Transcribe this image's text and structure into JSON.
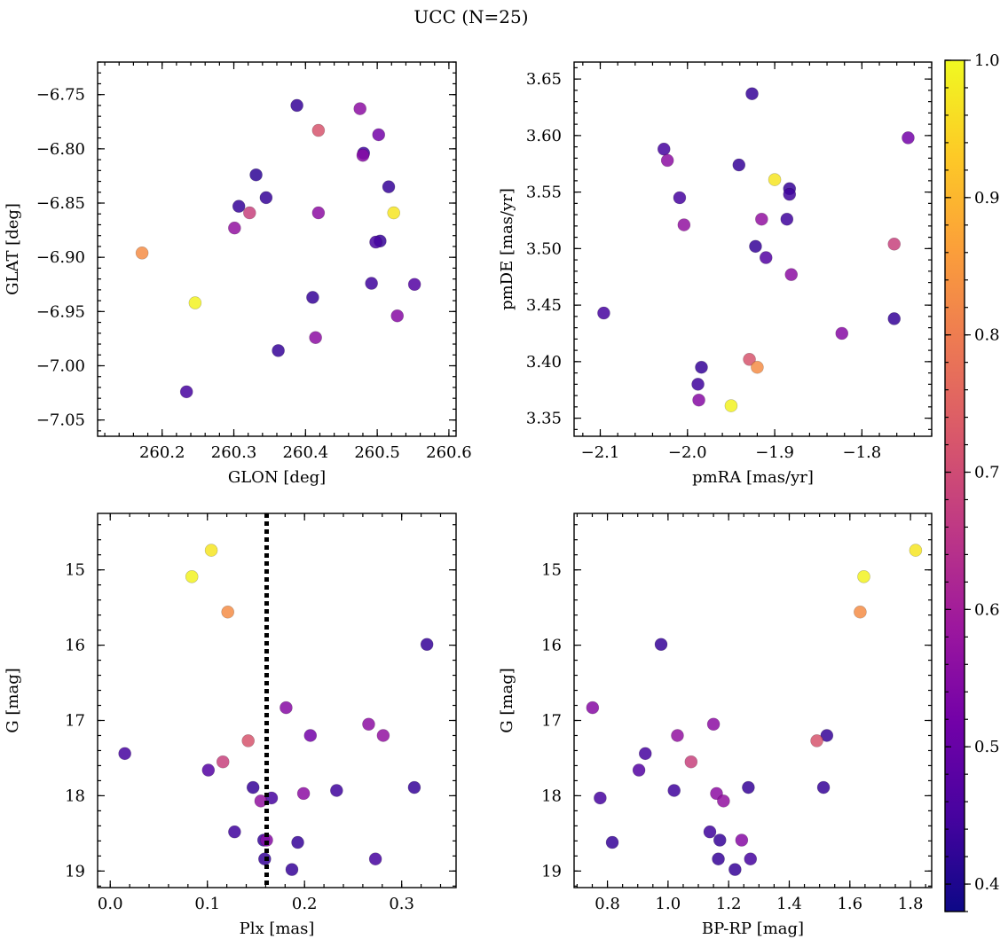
{
  "figure": {
    "suptitle": "UCC (N=25)"
  },
  "colorbar": {
    "range": [
      0.38,
      1.0
    ],
    "ticks": [
      0.4,
      0.5,
      0.6,
      0.7,
      0.8,
      0.9,
      1.0
    ],
    "tick_labels": [
      "0.4",
      "0.5",
      "0.6",
      "0.7",
      "0.8",
      "0.9",
      "1.0"
    ],
    "colormap": "plasma",
    "colormap_stops": [
      "#0d0887",
      "#46039f",
      "#7201a8",
      "#9c179e",
      "#bd3786",
      "#d8576b",
      "#ed7953",
      "#fb9f3a",
      "#fdca26",
      "#f0f921"
    ]
  },
  "chart_data": [
    {
      "type": "scatter",
      "xlabel": "GLON [deg]",
      "ylabel": "GLAT [deg]",
      "xlim": [
        260.11,
        260.61
      ],
      "ylim": [
        -7.065,
        -6.72
      ],
      "xticks": [
        260.2,
        260.3,
        260.4,
        260.5,
        260.6
      ],
      "xtick_labels": [
        "260.2",
        "260.3",
        "260.4",
        "260.5",
        "260.6"
      ],
      "yticks": [
        -6.75,
        -6.8,
        -6.85,
        -6.9,
        -6.95,
        -7.0,
        -7.05
      ],
      "ytick_labels": [
        "−6.75",
        "−6.80",
        "−6.85",
        "−6.90",
        "−6.95",
        "−7.00",
        "−7.05"
      ],
      "points": [
        {
          "x": 260.388,
          "y": -6.76,
          "c": 0.43
        },
        {
          "x": 260.476,
          "y": -6.763,
          "c": 0.56
        },
        {
          "x": 260.418,
          "y": -6.783,
          "c": 0.72
        },
        {
          "x": 260.502,
          "y": -6.787,
          "c": 0.52
        },
        {
          "x": 260.481,
          "y": -6.804,
          "c": 0.44
        },
        {
          "x": 260.48,
          "y": -6.806,
          "c": 0.55
        },
        {
          "x": 260.331,
          "y": -6.824,
          "c": 0.42
        },
        {
          "x": 260.516,
          "y": -6.835,
          "c": 0.43
        },
        {
          "x": 260.345,
          "y": -6.845,
          "c": 0.43
        },
        {
          "x": 260.307,
          "y": -6.853,
          "c": 0.43
        },
        {
          "x": 260.322,
          "y": -6.859,
          "c": 0.68
        },
        {
          "x": 260.418,
          "y": -6.859,
          "c": 0.56
        },
        {
          "x": 260.523,
          "y": -6.859,
          "c": 0.97
        },
        {
          "x": 260.301,
          "y": -6.873,
          "c": 0.57
        },
        {
          "x": 260.504,
          "y": -6.885,
          "c": 0.43
        },
        {
          "x": 260.498,
          "y": -6.886,
          "c": 0.45
        },
        {
          "x": 260.172,
          "y": -6.896,
          "c": 0.83
        },
        {
          "x": 260.492,
          "y": -6.924,
          "c": 0.44
        },
        {
          "x": 260.552,
          "y": -6.925,
          "c": 0.47
        },
        {
          "x": 260.41,
          "y": -6.937,
          "c": 0.43
        },
        {
          "x": 260.246,
          "y": -6.942,
          "c": 0.99
        },
        {
          "x": 260.528,
          "y": -6.954,
          "c": 0.55
        },
        {
          "x": 260.414,
          "y": -6.974,
          "c": 0.56
        },
        {
          "x": 260.362,
          "y": -6.986,
          "c": 0.43
        },
        {
          "x": 260.234,
          "y": -7.024,
          "c": 0.45
        }
      ]
    },
    {
      "type": "scatter",
      "xlabel": "pmRA [mas/yr]",
      "ylabel": "pmDE [mas/yr]",
      "xlim": [
        -2.13,
        -1.72
      ],
      "ylim": [
        3.334,
        3.665
      ],
      "xticks": [
        -2.1,
        -2.0,
        -1.9,
        -1.8
      ],
      "xtick_labels": [
        "−2.1",
        "−2.0",
        "−1.9",
        "−1.8"
      ],
      "yticks": [
        3.35,
        3.4,
        3.45,
        3.5,
        3.55,
        3.6,
        3.65
      ],
      "ytick_labels": [
        "3.35",
        "3.40",
        "3.45",
        "3.50",
        "3.55",
        "3.60",
        "3.65"
      ],
      "points": [
        {
          "x": -1.926,
          "y": 3.637,
          "c": 0.43
        },
        {
          "x": -2.027,
          "y": 3.588,
          "c": 0.45
        },
        {
          "x": -1.747,
          "y": 3.598,
          "c": 0.52
        },
        {
          "x": -2.023,
          "y": 3.578,
          "c": 0.56
        },
        {
          "x": -1.941,
          "y": 3.574,
          "c": 0.43
        },
        {
          "x": -1.9,
          "y": 3.561,
          "c": 0.97
        },
        {
          "x": -1.883,
          "y": 3.553,
          "c": 0.43
        },
        {
          "x": -1.883,
          "y": 3.548,
          "c": 0.44
        },
        {
          "x": -2.009,
          "y": 3.545,
          "c": 0.45
        },
        {
          "x": -1.915,
          "y": 3.526,
          "c": 0.57
        },
        {
          "x": -1.886,
          "y": 3.526,
          "c": 0.44
        },
        {
          "x": -2.004,
          "y": 3.521,
          "c": 0.57
        },
        {
          "x": -1.763,
          "y": 3.504,
          "c": 0.68
        },
        {
          "x": -1.922,
          "y": 3.502,
          "c": 0.43
        },
        {
          "x": -1.91,
          "y": 3.492,
          "c": 0.47
        },
        {
          "x": -1.881,
          "y": 3.477,
          "c": 0.56
        },
        {
          "x": -2.096,
          "y": 3.443,
          "c": 0.45
        },
        {
          "x": -1.763,
          "y": 3.438,
          "c": 0.43
        },
        {
          "x": -1.823,
          "y": 3.425,
          "c": 0.55
        },
        {
          "x": -1.929,
          "y": 3.402,
          "c": 0.72
        },
        {
          "x": -1.92,
          "y": 3.395,
          "c": 0.83
        },
        {
          "x": -1.984,
          "y": 3.395,
          "c": 0.43
        },
        {
          "x": -1.988,
          "y": 3.38,
          "c": 0.44
        },
        {
          "x": -1.987,
          "y": 3.366,
          "c": 0.55
        },
        {
          "x": -1.95,
          "y": 3.361,
          "c": 0.99
        }
      ]
    },
    {
      "type": "scatter",
      "xlabel": "Plx [mas]",
      "ylabel": "G [mag]",
      "xlim": [
        -0.013,
        0.356
      ],
      "ylim": [
        19.22,
        14.25
      ],
      "xticks": [
        0.0,
        0.1,
        0.2,
        0.3
      ],
      "xtick_labels": [
        "0.0",
        "0.1",
        "0.2",
        "0.3"
      ],
      "yticks": [
        15,
        16,
        17,
        18,
        19
      ],
      "ytick_labels": [
        "15",
        "16",
        "17",
        "18",
        "19"
      ],
      "vline": {
        "x": 0.161,
        "style": "dotted"
      },
      "points": [
        {
          "x": 0.104,
          "y": 14.74,
          "c": 0.97
        },
        {
          "x": 0.084,
          "y": 15.09,
          "c": 0.99
        },
        {
          "x": 0.121,
          "y": 15.56,
          "c": 0.83
        },
        {
          "x": 0.326,
          "y": 15.99,
          "c": 0.43
        },
        {
          "x": 0.181,
          "y": 16.83,
          "c": 0.55
        },
        {
          "x": 0.266,
          "y": 17.05,
          "c": 0.56
        },
        {
          "x": 0.206,
          "y": 17.2,
          "c": 0.52
        },
        {
          "x": 0.281,
          "y": 17.2,
          "c": 0.57
        },
        {
          "x": 0.142,
          "y": 17.27,
          "c": 0.72
        },
        {
          "x": 0.015,
          "y": 17.44,
          "c": 0.45
        },
        {
          "x": 0.116,
          "y": 17.55,
          "c": 0.68
        },
        {
          "x": 0.101,
          "y": 17.66,
          "c": 0.47
        },
        {
          "x": 0.147,
          "y": 17.89,
          "c": 0.43
        },
        {
          "x": 0.313,
          "y": 17.89,
          "c": 0.43
        },
        {
          "x": 0.233,
          "y": 17.93,
          "c": 0.44
        },
        {
          "x": 0.199,
          "y": 17.97,
          "c": 0.56
        },
        {
          "x": 0.166,
          "y": 18.03,
          "c": 0.45
        },
        {
          "x": 0.155,
          "y": 18.07,
          "c": 0.57
        },
        {
          "x": 0.128,
          "y": 18.48,
          "c": 0.44
        },
        {
          "x": 0.158,
          "y": 18.59,
          "c": 0.43
        },
        {
          "x": 0.161,
          "y": 18.59,
          "c": 0.55
        },
        {
          "x": 0.193,
          "y": 18.62,
          "c": 0.43
        },
        {
          "x": 0.159,
          "y": 18.84,
          "c": 0.43
        },
        {
          "x": 0.273,
          "y": 18.84,
          "c": 0.45
        },
        {
          "x": 0.187,
          "y": 18.98,
          "c": 0.43
        }
      ]
    },
    {
      "type": "scatter",
      "xlabel": "BP-RP [mag]",
      "ylabel": "G [mag]",
      "xlim": [
        0.69,
        1.87
      ],
      "ylim": [
        19.22,
        14.25
      ],
      "xticks": [
        0.8,
        1.0,
        1.2,
        1.4,
        1.6,
        1.8
      ],
      "xtick_labels": [
        "0.8",
        "1.0",
        "1.2",
        "1.4",
        "1.6",
        "1.8"
      ],
      "yticks": [
        15,
        16,
        17,
        18,
        19
      ],
      "ytick_labels": [
        "15",
        "16",
        "17",
        "18",
        "19"
      ],
      "points": [
        {
          "x": 1.817,
          "y": 14.74,
          "c": 0.97
        },
        {
          "x": 1.646,
          "y": 15.09,
          "c": 0.99
        },
        {
          "x": 1.634,
          "y": 15.56,
          "c": 0.83
        },
        {
          "x": 0.977,
          "y": 15.99,
          "c": 0.43
        },
        {
          "x": 0.751,
          "y": 16.83,
          "c": 0.55
        },
        {
          "x": 1.15,
          "y": 17.05,
          "c": 0.56
        },
        {
          "x": 1.524,
          "y": 17.2,
          "c": 0.43
        },
        {
          "x": 1.031,
          "y": 17.2,
          "c": 0.57
        },
        {
          "x": 1.491,
          "y": 17.27,
          "c": 0.72
        },
        {
          "x": 0.925,
          "y": 17.44,
          "c": 0.45
        },
        {
          "x": 1.076,
          "y": 17.55,
          "c": 0.68
        },
        {
          "x": 0.904,
          "y": 17.66,
          "c": 0.47
        },
        {
          "x": 1.265,
          "y": 17.89,
          "c": 0.43
        },
        {
          "x": 1.513,
          "y": 17.89,
          "c": 0.43
        },
        {
          "x": 1.02,
          "y": 17.93,
          "c": 0.44
        },
        {
          "x": 1.16,
          "y": 17.97,
          "c": 0.56
        },
        {
          "x": 0.776,
          "y": 18.03,
          "c": 0.45
        },
        {
          "x": 1.183,
          "y": 18.07,
          "c": 0.57
        },
        {
          "x": 1.138,
          "y": 18.48,
          "c": 0.44
        },
        {
          "x": 1.171,
          "y": 18.59,
          "c": 0.43
        },
        {
          "x": 1.243,
          "y": 18.59,
          "c": 0.55
        },
        {
          "x": 0.816,
          "y": 18.62,
          "c": 0.43
        },
        {
          "x": 1.166,
          "y": 18.84,
          "c": 0.43
        },
        {
          "x": 1.272,
          "y": 18.84,
          "c": 0.45
        },
        {
          "x": 1.221,
          "y": 18.98,
          "c": 0.43
        }
      ]
    }
  ]
}
